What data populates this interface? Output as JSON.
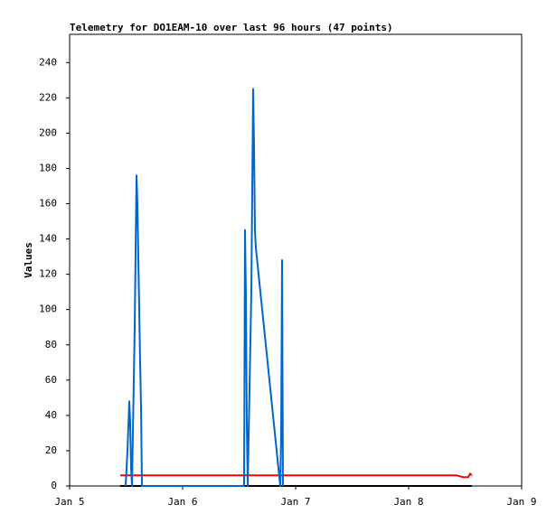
{
  "chart_data": {
    "type": "line",
    "title": "Telemetry for DO1EAM-10 over last 96 hours (47 points)",
    "ylabel": "Values",
    "xlim": [
      0,
      4
    ],
    "xticks": [
      {
        "value": 0,
        "label": "Jan 5"
      },
      {
        "value": 1,
        "label": "Jan 6"
      },
      {
        "value": 2,
        "label": "Jan 7"
      },
      {
        "value": 3,
        "label": "Jan 8"
      },
      {
        "value": 4,
        "label": "Jan 9"
      }
    ],
    "ylim": [
      0,
      256
    ],
    "yticks": [
      0,
      20,
      40,
      60,
      80,
      100,
      120,
      140,
      160,
      180,
      200,
      220,
      240
    ],
    "grid": false,
    "series": [
      {
        "color": "#000000",
        "x": [
          0.448,
          3.56
        ],
        "values": [
          0,
          0
        ]
      },
      {
        "color": "#ff0000",
        "x": [
          0.448,
          3.424,
          3.48,
          3.528,
          3.544,
          3.56
        ],
        "values": [
          6,
          6,
          5,
          5,
          7,
          6
        ]
      },
      {
        "color": "#0066cc",
        "x": [
          0.496,
          0.512,
          0.528,
          0.536,
          0.544,
          0.552,
          0.576,
          0.592,
          0.6,
          0.608,
          0.616,
          0.624,
          0.632,
          0.64,
          1.544,
          1.552,
          1.56,
          1.568,
          1.576,
          1.608,
          1.624,
          1.632,
          1.64,
          1.648,
          1.864,
          1.872,
          1.88,
          1.888
        ],
        "values": [
          0,
          20,
          48,
          36,
          10,
          0,
          90,
          176,
          160,
          130,
          100,
          70,
          45,
          0,
          0,
          145,
          108,
          35,
          0,
          110,
          225,
          192,
          145,
          135,
          0,
          30,
          128,
          0
        ]
      }
    ]
  }
}
